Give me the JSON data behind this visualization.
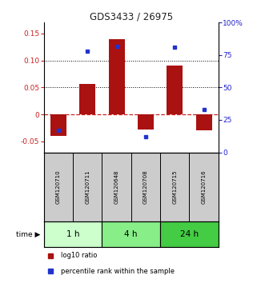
{
  "title": "GDS3433 / 26975",
  "samples": [
    "GSM120710",
    "GSM120711",
    "GSM120648",
    "GSM120708",
    "GSM120715",
    "GSM120716"
  ],
  "log10_ratio": [
    -0.04,
    0.057,
    0.14,
    -0.028,
    0.09,
    -0.03
  ],
  "percentile_rank": [
    0.17,
    0.78,
    0.82,
    0.12,
    0.81,
    0.33
  ],
  "groups": [
    {
      "label": "1 h",
      "indices": [
        0,
        1
      ],
      "color": "#ccffcc"
    },
    {
      "label": "4 h",
      "indices": [
        2,
        3
      ],
      "color": "#88ee88"
    },
    {
      "label": "24 h",
      "indices": [
        4,
        5
      ],
      "color": "#44cc44"
    }
  ],
  "bar_color": "#aa1111",
  "dot_color": "#2233cc",
  "ylim_left": [
    -0.07,
    0.17
  ],
  "ylim_right": [
    0,
    1.0
  ],
  "yticks_left": [
    -0.05,
    0.0,
    0.05,
    0.1,
    0.15
  ],
  "ytick_labels_left": [
    "-0.05",
    "0",
    "0.05",
    "0.10",
    "0.15"
  ],
  "yticks_right": [
    0.0,
    0.25,
    0.5,
    0.75,
    1.0
  ],
  "ytick_labels_right": [
    "0",
    "25",
    "50",
    "75",
    "100%"
  ],
  "hlines": [
    0.05,
    0.1
  ],
  "zero_line": 0.0,
  "bar_width": 0.55,
  "title_color": "#222222",
  "left_tick_color": "#cc2222",
  "right_tick_color": "#2222cc",
  "legend_labels": [
    "log10 ratio",
    "percentile rank within the sample"
  ],
  "background_plot": "#ffffff",
  "background_sample_box": "#cccccc"
}
